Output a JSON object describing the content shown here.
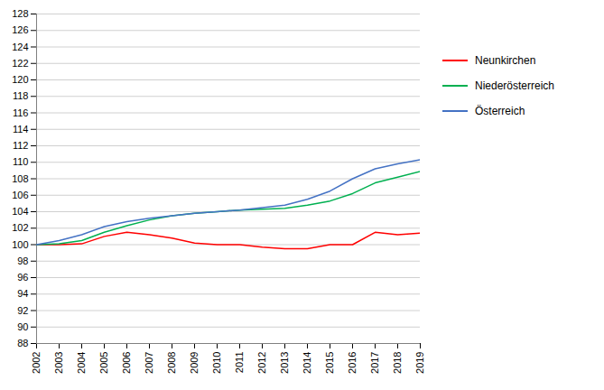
{
  "chart_data": {
    "type": "line",
    "x": [
      2002,
      2003,
      2004,
      2005,
      2006,
      2007,
      2008,
      2009,
      2010,
      2011,
      2012,
      2013,
      2014,
      2015,
      2016,
      2017,
      2018,
      2019
    ],
    "series": [
      {
        "name": "Neunkirchen",
        "color": "#ff0000",
        "values": [
          100.0,
          100.0,
          100.1,
          101.0,
          101.5,
          101.2,
          100.8,
          100.2,
          100.0,
          100.0,
          99.7,
          99.5,
          99.5,
          100.0,
          100.0,
          101.5,
          101.2,
          101.4
        ]
      },
      {
        "name": "Niederösterreich",
        "color": "#00b050",
        "values": [
          100.0,
          100.1,
          100.5,
          101.5,
          102.3,
          103.0,
          103.5,
          103.8,
          104.0,
          104.2,
          104.3,
          104.4,
          104.8,
          105.3,
          106.2,
          107.5,
          108.2,
          108.9
        ]
      },
      {
        "name": "Österreich",
        "color": "#4472c4",
        "values": [
          100.0,
          100.5,
          101.2,
          102.2,
          102.8,
          103.2,
          103.5,
          103.8,
          104.0,
          104.2,
          104.5,
          104.8,
          105.5,
          106.5,
          108.0,
          109.2,
          109.8,
          110.3
        ]
      }
    ],
    "xlim": [
      2002,
      2019
    ],
    "xticks": [
      2002,
      2003,
      2004,
      2005,
      2006,
      2007,
      2008,
      2009,
      2010,
      2011,
      2012,
      2013,
      2014,
      2015,
      2016,
      2017,
      2018,
      2019
    ],
    "ylim": [
      88,
      128
    ],
    "yticks": [
      88,
      90,
      92,
      94,
      96,
      98,
      100,
      102,
      104,
      106,
      108,
      110,
      112,
      114,
      116,
      118,
      120,
      122,
      124,
      126,
      128
    ],
    "grid": true,
    "legend": "right"
  }
}
